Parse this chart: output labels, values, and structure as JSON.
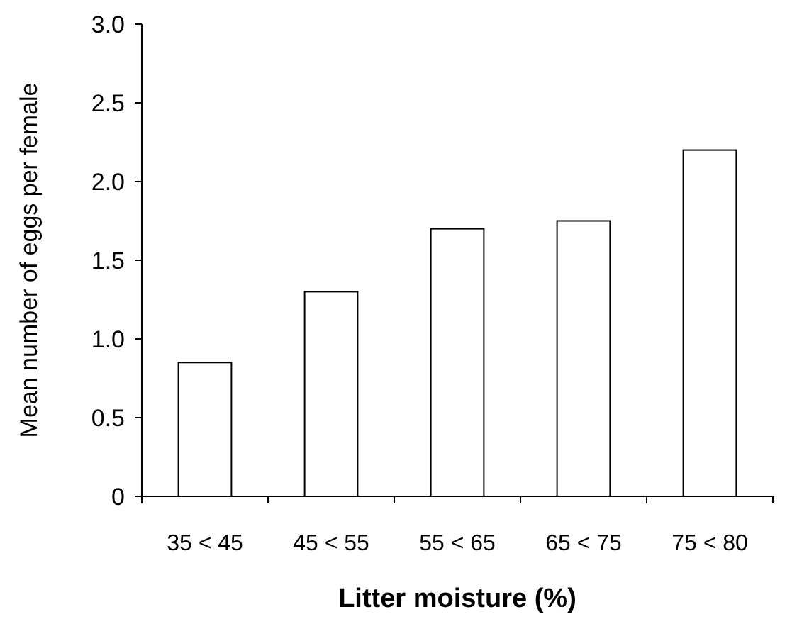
{
  "chart_data": {
    "type": "bar",
    "xlabel": "Litter moisture (%)",
    "ylabel": "Mean number of eggs per female",
    "categories": [
      "35 < 45",
      "45 < 55",
      "55 < 65",
      "65 < 75",
      "75 < 80"
    ],
    "values": [
      0.85,
      1.3,
      1.7,
      1.75,
      2.2
    ],
    "color": "#ffffff",
    "ylim": [
      0,
      3
    ],
    "yticks": [
      0,
      0.5,
      {
        "value": 1,
        "label": "1.0"
      },
      1.5,
      {
        "value": 2,
        "label": "2.0"
      },
      2.5,
      {
        "value": 3,
        "label": "3.0"
      }
    ],
    "grid": false
  }
}
